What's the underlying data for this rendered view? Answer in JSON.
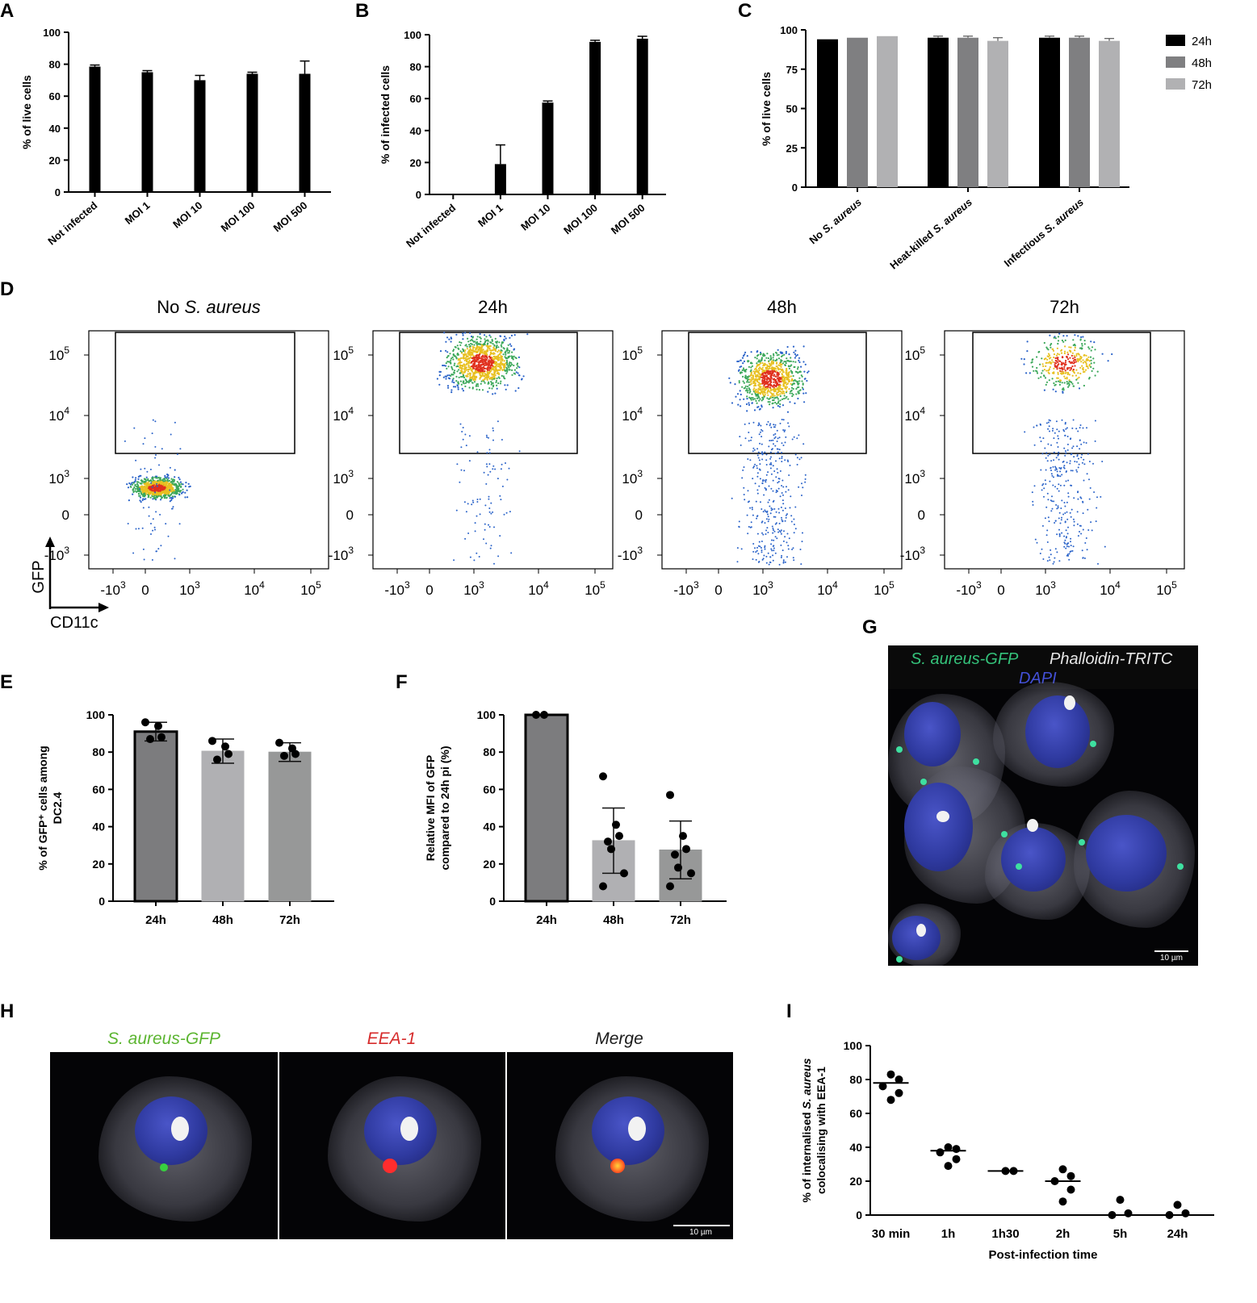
{
  "panel_letters": {
    "A": "A",
    "B": "B",
    "C": "C",
    "D": "D",
    "E": "E",
    "F": "F",
    "G": "G",
    "H": "H",
    "I": "I"
  },
  "chart_data": [
    {
      "id": "A",
      "type": "bar",
      "categories": [
        "Not infected",
        "MOI 1",
        "MOI 10",
        "MOI 100",
        "MOI 500"
      ],
      "values": [
        78.5,
        75,
        70,
        74,
        74
      ],
      "errors": [
        1,
        1,
        3,
        1,
        8
      ],
      "ylabel": "% of live cells",
      "ylim": [
        0,
        100
      ],
      "yticks": [
        "0",
        "20",
        "40",
        "60",
        "80",
        "100"
      ],
      "bar_color": "#000000"
    },
    {
      "id": "B",
      "type": "bar",
      "categories": [
        "Not infected",
        "MOI 1",
        "MOI 10",
        "MOI 100",
        "MOI 500"
      ],
      "values": [
        0,
        19,
        57.5,
        95.5,
        97.5
      ],
      "errors": [
        0,
        12,
        1,
        1,
        1.5
      ],
      "ylabel": "% of infected cells",
      "ylim": [
        0,
        100
      ],
      "yticks": [
        "0",
        "20",
        "40",
        "60",
        "80",
        "100"
      ],
      "bar_color": "#000000"
    },
    {
      "id": "C",
      "type": "bar",
      "categories": [
        "No S. aureus",
        "Heat-killed S. aureus",
        "Infectious S. aureus"
      ],
      "category_labels": [
        {
          "pre": "No ",
          "it": "S. aureus"
        },
        {
          "pre": "Heat-killed ",
          "it": "S. aureus"
        },
        {
          "pre": "Infectious ",
          "it": "S. aureus"
        }
      ],
      "series": [
        {
          "name": "24h",
          "values": [
            94,
            95,
            95
          ],
          "errors": [
            0,
            1,
            1
          ],
          "color": "#000000"
        },
        {
          "name": "48h",
          "values": [
            95,
            95,
            95
          ],
          "errors": [
            0,
            1,
            1
          ],
          "color": "#7f7f81"
        },
        {
          "name": "72h",
          "values": [
            96,
            93,
            93
          ],
          "errors": [
            0,
            2,
            1.5
          ],
          "color": "#b1b1b3"
        }
      ],
      "ylabel": "% of live cells",
      "ylim": [
        0,
        100
      ],
      "yticks": [
        "0",
        "25",
        "50",
        "75",
        "100"
      ],
      "legend": "right"
    },
    {
      "id": "E",
      "type": "bar",
      "categories": [
        "24h",
        "48h",
        "72h"
      ],
      "values": [
        91,
        80.5,
        80
      ],
      "errors": [
        5,
        6.5,
        5
      ],
      "points": [
        [
          96,
          94,
          88,
          87
        ],
        [
          86,
          83,
          79,
          76
        ],
        [
          85,
          82,
          79,
          78
        ]
      ],
      "colors": [
        "#7c7c7e",
        "#b0b0b3",
        "#979898"
      ],
      "ylabel_lines": [
        "% of GFP⁺ cells among",
        "DC2.4"
      ],
      "ylim": [
        0,
        100
      ],
      "yticks": [
        "0",
        "20",
        "40",
        "60",
        "80",
        "100"
      ]
    },
    {
      "id": "F",
      "type": "bar",
      "categories": [
        "24h",
        "48h",
        "72h"
      ],
      "values": [
        100,
        32.5,
        27.5
      ],
      "errors": [
        0,
        17.5,
        15.5
      ],
      "points": [
        [
          100,
          100
        ],
        [
          67,
          41,
          35,
          32,
          28,
          15,
          8
        ],
        [
          57,
          35,
          28,
          25,
          18,
          15,
          8
        ]
      ],
      "colors": [
        "#7c7c7e",
        "#b0b0b3",
        "#979898"
      ],
      "ylabel_lines": [
        "Relative MFI of GFP",
        "compared to 24h pi (%)"
      ],
      "ylim": [
        0,
        100
      ],
      "yticks": [
        "0",
        "20",
        "40",
        "60",
        "80",
        "100"
      ]
    },
    {
      "id": "I",
      "type": "scatter",
      "categories": [
        "30 min",
        "1h",
        "1h30",
        "2h",
        "5h",
        "24h"
      ],
      "points": [
        [
          83,
          80,
          76,
          72,
          68
        ],
        [
          40,
          39,
          37,
          33,
          29
        ],
        [
          26,
          26
        ],
        [
          27,
          23,
          20,
          15,
          8
        ],
        [
          9,
          1,
          0
        ],
        [
          6,
          1,
          0
        ]
      ],
      "medians": [
        78,
        38,
        26,
        20,
        0,
        0
      ],
      "ylabel_lines": [
        {
          "pre": "% of internalised ",
          "it": "S. aureus"
        },
        {
          "pre": "colocalising with EEA-1",
          "it": ""
        }
      ],
      "xlabel": "Post-infection time",
      "ylim": [
        0,
        100
      ],
      "yticks": [
        "0",
        "20",
        "40",
        "60",
        "80",
        "100"
      ]
    }
  ],
  "flow": {
    "panels": [
      {
        "title_pre": "No ",
        "title_it": "S. aureus",
        "pop": "baseline"
      },
      {
        "title_pre": "24h",
        "title_it": "",
        "pop": "high"
      },
      {
        "title_pre": "48h",
        "title_it": "",
        "pop": "mid"
      },
      {
        "title_pre": "72h",
        "title_it": "",
        "pop": "low"
      }
    ],
    "y_axis_label": "GFP",
    "x_axis_label": "CD11c",
    "y_ticks": [
      "10",
      "10",
      "10",
      "10",
      "0",
      "-10"
    ],
    "y_exps": [
      "5",
      "4",
      "3",
      "",
      ""
    ],
    "x_ticks": [
      "-10",
      "0",
      "10",
      "10",
      "10"
    ],
    "tick_exp": "3"
  },
  "panel_G": {
    "labels": {
      "gfp": "S. aureus-GFP",
      "phalloidin": "Phalloidin-TRITC",
      "dapi": "DAPI"
    },
    "scale": "10 µm"
  },
  "panel_H": {
    "titles": [
      "S. aureus-GFP",
      "EEA-1",
      "Merge"
    ],
    "title_colors": [
      "#5cb531",
      "#d62b2b",
      "#1a1a1a"
    ],
    "scale": "10 µm"
  }
}
